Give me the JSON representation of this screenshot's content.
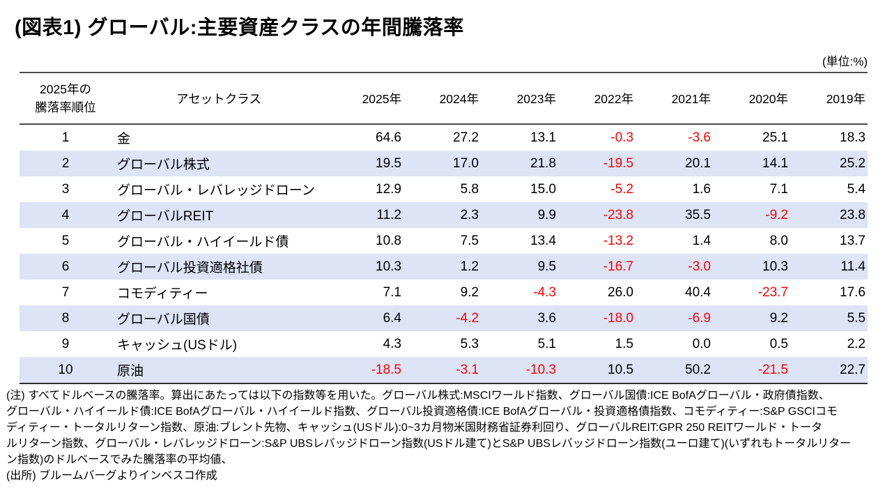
{
  "title": "(図表1) グローバル:主要資産クラスの年間騰落率",
  "unit_label": "(単位:%)",
  "table": {
    "rank_header": [
      "2025年の",
      "騰落率順位"
    ],
    "asset_header": "アセットクラス",
    "year_headers": [
      "2025年",
      "2024年",
      "2023年",
      "2022年",
      "2021年",
      "2020年",
      "2019年"
    ],
    "rows": [
      {
        "rank": "1",
        "asset": "金",
        "values": [
          "64.6",
          "27.2",
          "13.1",
          "-0.3",
          "-3.6",
          "25.1",
          "18.3"
        ]
      },
      {
        "rank": "2",
        "asset": "グローバル株式",
        "values": [
          "19.5",
          "17.0",
          "21.8",
          "-19.5",
          "20.1",
          "14.1",
          "25.2"
        ]
      },
      {
        "rank": "3",
        "asset": "グローバル・レバレッジドローン",
        "values": [
          "12.9",
          "5.8",
          "15.0",
          "-5.2",
          "1.6",
          "7.1",
          "5.4"
        ]
      },
      {
        "rank": "4",
        "asset": "グローバルREIT",
        "values": [
          "11.2",
          "2.3",
          "9.9",
          "-23.8",
          "35.5",
          "-9.2",
          "23.8"
        ]
      },
      {
        "rank": "5",
        "asset": "グローバル・ハイイールド債",
        "values": [
          "10.8",
          "7.5",
          "13.4",
          "-13.2",
          "1.4",
          "8.0",
          "13.7"
        ]
      },
      {
        "rank": "6",
        "asset": "グローバル投資適格社債",
        "values": [
          "10.3",
          "1.2",
          "9.5",
          "-16.7",
          "-3.0",
          "10.3",
          "11.4"
        ]
      },
      {
        "rank": "7",
        "asset": "コモディティー",
        "values": [
          "7.1",
          "9.2",
          "-4.3",
          "26.0",
          "40.4",
          "-23.7",
          "17.6"
        ]
      },
      {
        "rank": "8",
        "asset": "グローバル国債",
        "values": [
          "6.4",
          "-4.2",
          "3.6",
          "-18.0",
          "-6.9",
          "9.2",
          "5.5"
        ]
      },
      {
        "rank": "9",
        "asset": "キャッシュ(USドル)",
        "values": [
          "4.3",
          "5.3",
          "5.1",
          "1.5",
          "0.0",
          "0.5",
          "2.2"
        ]
      },
      {
        "rank": "10",
        "asset": "原油",
        "values": [
          "-18.5",
          "-3.1",
          "-10.3",
          "10.5",
          "50.2",
          "-21.5",
          "22.7"
        ]
      }
    ]
  },
  "colors": {
    "band_blue": "#dce4f6",
    "negative_red": "#ff0000",
    "border_dark": "#4b4b4b"
  },
  "notes": {
    "lines": [
      "(注) すべてドルベースの騰落率。算出にあたっては以下の指数等を用いた。グローバル株式:MSCIワールド指数、グローバル国債:ICE BofAグローバル・政府債指数、",
      "グローバル・ハイイールド債:ICE BofAグローバル・ハイイールド指数、グローバル投資適格債:ICE BofAグローバル・投資適格債指数、コモディティー:S&P GSCIコモ",
      "ディティー・トータルリターン指数、原油:ブレント先物、キャッシュ(USドル):0~3カ月物米国財務省証券利回り、グローバルREIT:GPR 250 REITワールド・トータ",
      "ルリターン指数、グローバル・レバレッジドローン:S&P UBSレバッジドローン指数(USドル建て)とS&P UBSレバッジドローン指数(ユーロ建て)(いずれもトータルリター",
      "ン指数)のドルベースでみた騰落率の平均値、"
    ],
    "source": "(出所) ブルームバーグよりインベスコ作成"
  }
}
